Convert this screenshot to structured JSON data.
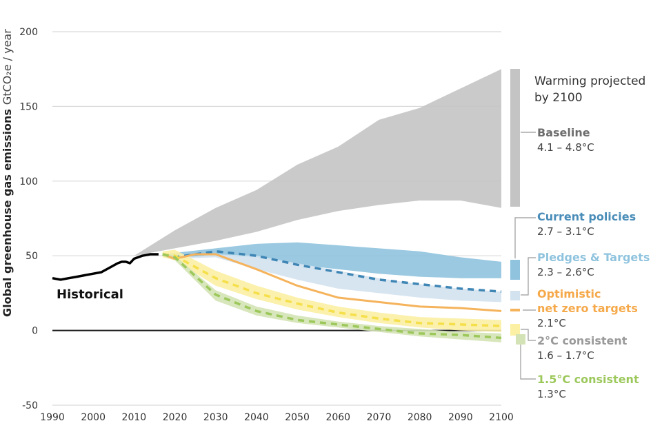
{
  "chart_data": {
    "type": "area",
    "title": "",
    "xlabel": "",
    "ylabel": "Global greenhouse gas emissions",
    "ylabel_unit": "GtCO₂e / year",
    "xlim": [
      1990,
      2100
    ],
    "ylim": [
      -50,
      200
    ],
    "x_ticks": [
      "1990",
      "2000",
      "2010",
      "2020",
      "2030",
      "2040",
      "2050",
      "2060",
      "2070",
      "2080",
      "2090",
      "2100"
    ],
    "y_ticks": [
      "200",
      "150",
      "100",
      "50",
      "0",
      "-50"
    ],
    "grid": true,
    "historical": {
      "name": "Historical",
      "color": "#000000",
      "x": [
        1990,
        1992,
        1994,
        1996,
        1998,
        2000,
        2002,
        2004,
        2006,
        2007,
        2008,
        2009,
        2010,
        2012,
        2014,
        2016
      ],
      "y": [
        35,
        34,
        35,
        36,
        37,
        38,
        39,
        42,
        45,
        46,
        46,
        45,
        48,
        50,
        51,
        51
      ]
    },
    "warming_header": "Warming projected by 2100",
    "series": [
      {
        "name": "Baseline",
        "warming": "4.1 – 4.8°C",
        "color": "#c4c4c4",
        "label_color": "#6d6d6d",
        "kind": "band",
        "x": [
          2010,
          2020,
          2030,
          2040,
          2050,
          2060,
          2070,
          2080,
          2090,
          2100
        ],
        "upper": [
          50,
          67,
          82,
          94,
          111,
          123,
          141,
          149,
          162,
          175
        ],
        "lower": [
          50,
          55,
          60,
          66,
          74,
          80,
          84,
          87,
          87,
          82
        ]
      },
      {
        "name": "Current policies",
        "warming": "2.7 – 3.1°C",
        "color": "#8fc3de",
        "label_color": "#4a8db8",
        "kind": "band",
        "x": [
          2017,
          2020,
          2030,
          2040,
          2050,
          2060,
          2070,
          2080,
          2090,
          2100
        ],
        "upper": [
          51,
          52,
          55,
          58,
          59,
          57,
          55,
          53,
          49,
          46
        ],
        "lower": [
          51,
          49,
          50,
          49,
          44,
          41,
          38,
          36,
          35,
          35
        ]
      },
      {
        "name": "Pledges & Targets",
        "warming": "2.3 – 2.6°C",
        "color": "#d3e2ef",
        "label_color": "#8fc3de",
        "kind": "band",
        "x": [
          2017,
          2020,
          2030,
          2040,
          2050,
          2060,
          2070,
          2080,
          2090,
          2100
        ],
        "upper": [
          51,
          48,
          51,
          50,
          45,
          40,
          35,
          31,
          28,
          26
        ],
        "lower": [
          51,
          48,
          49,
          41,
          34,
          28,
          25,
          22,
          20,
          19
        ],
        "median": [
          51,
          49,
          53,
          50,
          44,
          39,
          34,
          31,
          28,
          26
        ],
        "median_color": "#3f86b5"
      },
      {
        "name": "Optimistic net zero targets",
        "warming": "2.1°C",
        "color": "#f5b35c",
        "label_color": "#f5a94a",
        "kind": "line",
        "x": [
          2017,
          2020,
          2025,
          2030,
          2040,
          2050,
          2060,
          2070,
          2080,
          2090,
          2100
        ],
        "y": [
          51,
          48,
          51,
          51,
          41,
          30,
          22,
          19,
          16,
          15,
          13
        ]
      },
      {
        "name": "2°C consistent",
        "warming": "1.6 – 1.7°C",
        "color": "#fbf0a3",
        "label_color": "#9a9a9a",
        "kind": "band",
        "x": [
          2017,
          2020,
          2030,
          2040,
          2050,
          2060,
          2070,
          2080,
          2090,
          2100
        ],
        "upper": [
          53,
          54,
          40,
          30,
          22,
          16,
          12,
          9,
          8,
          7
        ],
        "lower": [
          49,
          47,
          30,
          21,
          14,
          9,
          5,
          2,
          0,
          -1
        ],
        "median": [
          51,
          50,
          35,
          25,
          18,
          12,
          8,
          5,
          4,
          3
        ],
        "median_color": "#f5df4a"
      },
      {
        "name": "1.5°C consistent",
        "warming": "1.3°C",
        "color": "#d4e3b5",
        "label_color": "#9cc85b",
        "kind": "band",
        "x": [
          2017,
          2020,
          2030,
          2040,
          2050,
          2060,
          2070,
          2080,
          2090,
          2100
        ],
        "upper": [
          52,
          50,
          27,
          16,
          10,
          6,
          3,
          1,
          -1,
          -2
        ],
        "lower": [
          50,
          47,
          20,
          10,
          5,
          2,
          -1,
          -4,
          -6,
          -8
        ],
        "median": [
          51,
          49,
          24,
          13,
          7,
          4,
          1,
          -2,
          -3,
          -5
        ],
        "median_color": "#9cc85b"
      }
    ]
  }
}
